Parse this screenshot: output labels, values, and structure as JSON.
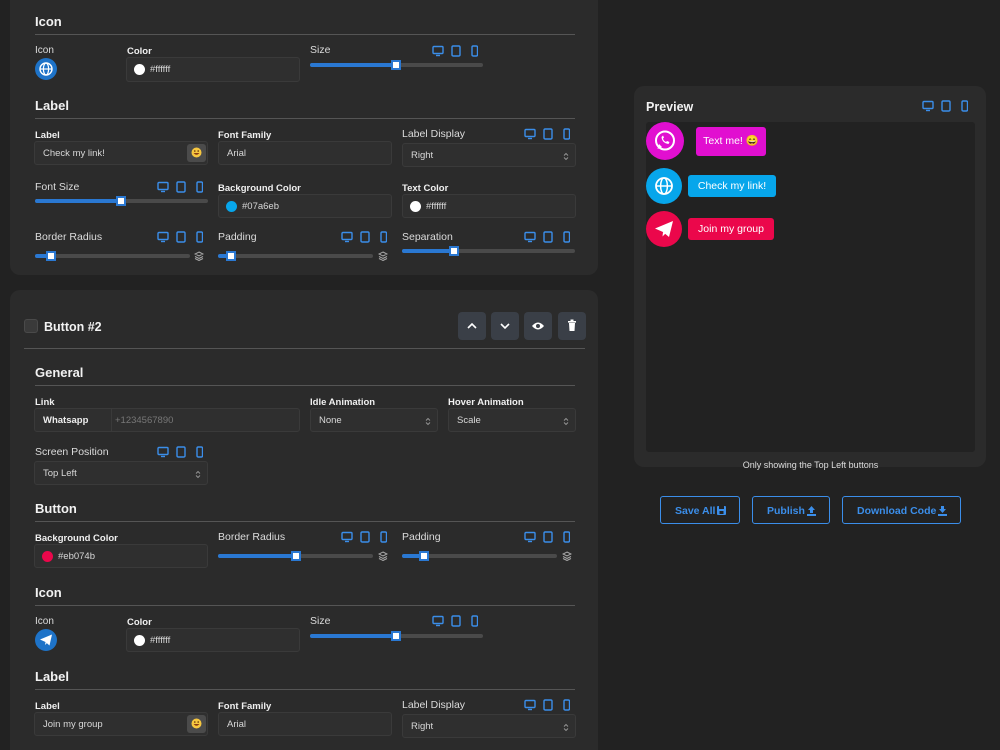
{
  "editor": {
    "button1": {
      "icon": {
        "title": "Icon",
        "icon_label": "Icon",
        "color_label": "Color",
        "color_value": "#ffffff",
        "size_label": "Size"
      },
      "label": {
        "title": "Label",
        "label_label": "Label",
        "label_value": "Check my link!",
        "font_family_label": "Font Family",
        "font_family_value": "Arial",
        "display_label": "Label Display",
        "display_value": "Right",
        "font_size_label": "Font Size",
        "bg_color_label": "Background Color",
        "bg_color_value": "#07a6eb",
        "text_color_label": "Text Color",
        "text_color_value": "#ffffff",
        "border_radius_label": "Border Radius",
        "padding_label": "Padding",
        "separation_label": "Separation"
      }
    },
    "button2": {
      "title": "Button #2",
      "general": {
        "title": "General",
        "link_label": "Link",
        "link_type": "Whatsapp",
        "link_placeholder": "+1234567890",
        "idle_label": "Idle Animation",
        "idle_value": "None",
        "hover_label": "Hover Animation",
        "hover_value": "Scale",
        "position_label": "Screen Position",
        "position_value": "Top Left"
      },
      "button": {
        "title": "Button",
        "bg_color_label": "Background Color",
        "bg_color_value": "#eb074b",
        "border_radius_label": "Border Radius",
        "padding_label": "Padding"
      },
      "icon": {
        "title": "Icon",
        "icon_label": "Icon",
        "color_label": "Color",
        "color_value": "#ffffff",
        "size_label": "Size"
      },
      "label": {
        "title": "Label",
        "label_label": "Label",
        "label_value": "Join my group",
        "font_family_label": "Font Family",
        "font_family_value": "Arial",
        "display_label": "Label Display",
        "display_value": "Right"
      }
    }
  },
  "preview": {
    "title": "Preview",
    "buttons": [
      "Text me! 😄",
      "Check my link!",
      "Join my group"
    ],
    "note": "Only showing the Top Left buttons"
  },
  "actions": [
    "Save All",
    "Publish",
    "Download Code"
  ]
}
